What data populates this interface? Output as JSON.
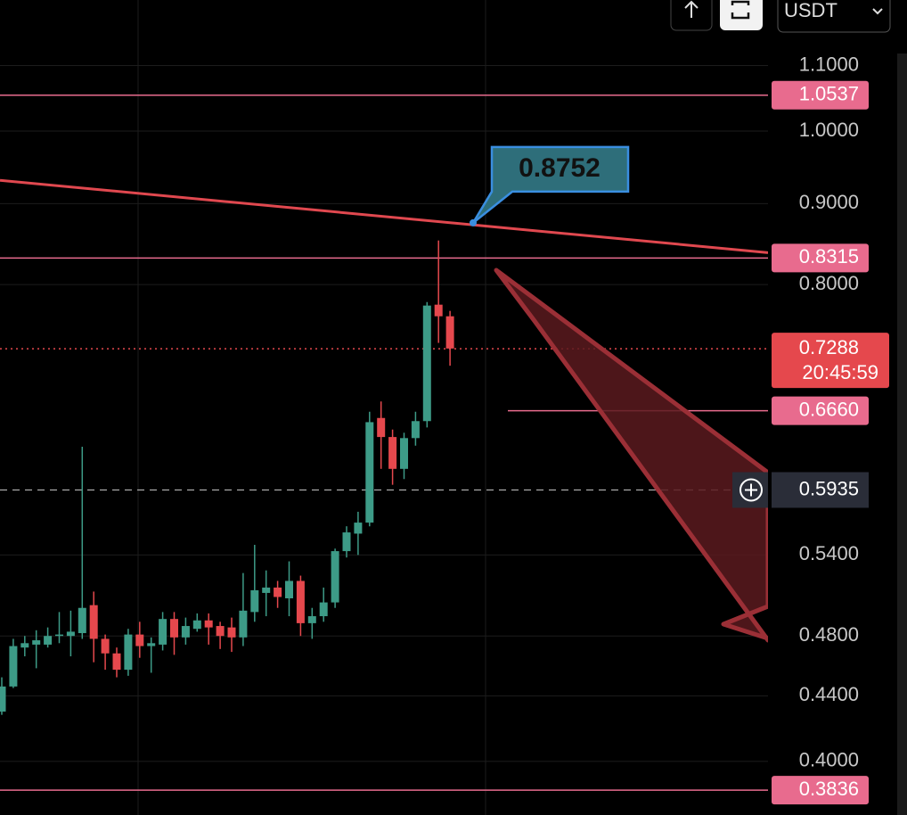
{
  "chart_data": {
    "type": "candlestick",
    "log_scale": true,
    "ylim": [
      0.37,
      1.21
    ],
    "yticks": [
      {
        "value": 1.1,
        "label": "1.1000"
      },
      {
        "value": 1.0,
        "label": "1.0000"
      },
      {
        "value": 0.9,
        "label": "0.9000"
      },
      {
        "value": 0.8,
        "label": "0.8000"
      },
      {
        "value": 0.54,
        "label": "0.5400"
      },
      {
        "value": 0.48,
        "label": "0.4800"
      },
      {
        "value": 0.44,
        "label": "0.4400"
      },
      {
        "value": 0.4,
        "label": "0.4000"
      }
    ],
    "up_color": "#3d9b87",
    "down_color": "#e5484d",
    "open": [
      0.43,
      0.446,
      0.472,
      0.474,
      0.474,
      0.48,
      0.48,
      0.482,
      0.502,
      0.478,
      0.468,
      0.457,
      0.481,
      0.473,
      0.474,
      0.492,
      0.479,
      0.485,
      0.491,
      0.487,
      0.486,
      0.479,
      0.497,
      0.511,
      0.515,
      0.507,
      0.52,
      0.489,
      0.494,
      0.504,
      0.543,
      0.557,
      0.566,
      0.659,
      0.641,
      0.612,
      0.64,
      0.656,
      0.777,
      0.764
    ],
    "high": [
      0.452,
      0.478,
      0.48,
      0.484,
      0.486,
      0.497,
      0.498,
      0.632,
      0.512,
      0.481,
      0.472,
      0.485,
      0.49,
      0.479,
      0.497,
      0.497,
      0.493,
      0.496,
      0.496,
      0.49,
      0.493,
      0.526,
      0.548,
      0.528,
      0.52,
      0.535,
      0.524,
      0.5,
      0.515,
      0.545,
      0.563,
      0.575,
      0.665,
      0.675,
      0.648,
      0.645,
      0.665,
      0.78,
      0.853,
      0.77
    ],
    "low": [
      0.428,
      0.445,
      0.466,
      0.458,
      0.472,
      0.475,
      0.466,
      0.478,
      0.462,
      0.457,
      0.452,
      0.453,
      0.465,
      0.455,
      0.47,
      0.467,
      0.474,
      0.483,
      0.474,
      0.471,
      0.469,
      0.473,
      0.49,
      0.494,
      0.5,
      0.494,
      0.48,
      0.478,
      0.49,
      0.5,
      0.538,
      0.54,
      0.563,
      0.612,
      0.598,
      0.603,
      0.633,
      0.65,
      0.735,
      0.711
    ],
    "close": [
      0.446,
      0.473,
      0.475,
      0.477,
      0.48,
      0.481,
      0.483,
      0.5,
      0.478,
      0.468,
      0.457,
      0.481,
      0.473,
      0.475,
      0.492,
      0.479,
      0.487,
      0.491,
      0.486,
      0.48,
      0.479,
      0.498,
      0.513,
      0.515,
      0.508,
      0.52,
      0.489,
      0.494,
      0.504,
      0.543,
      0.558,
      0.566,
      0.655,
      0.641,
      0.612,
      0.64,
      0.656,
      0.776,
      0.764,
      0.729
    ],
    "levels": [
      1.0537,
      0.8315,
      {
        "value": 0.666,
        "label": "0.6660"
      },
      0.3836
    ],
    "level_color": "#e86b8e",
    "trendline": {
      "start": 0.931,
      "end": 0.838,
      "label": 0.8752,
      "color": "#e0484f"
    },
    "current_price": 0.7288,
    "countdown": "20:45:59",
    "crosshair_price": 0.5935,
    "currency": "USDT"
  }
}
